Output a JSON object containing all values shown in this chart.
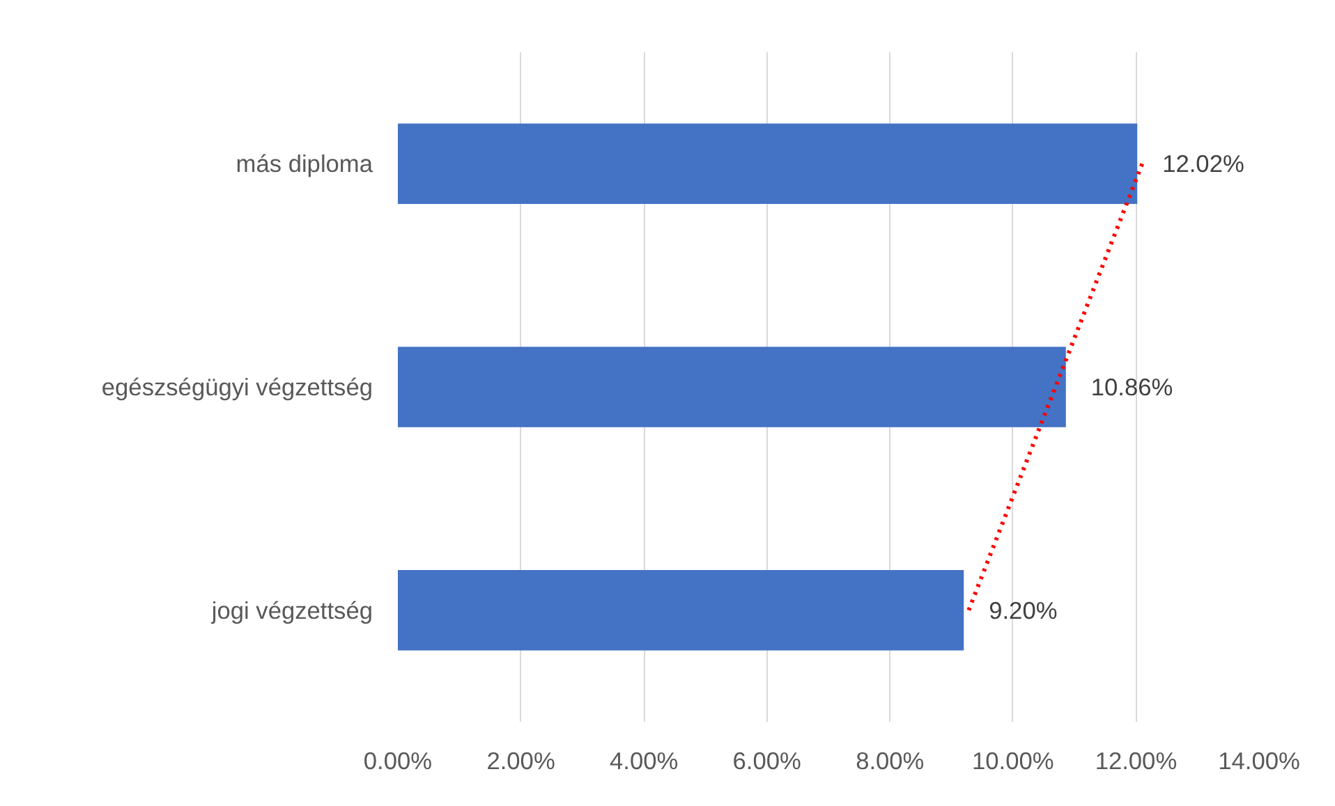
{
  "chart_data": {
    "type": "bar",
    "orientation": "horizontal",
    "categories": [
      "más diploma",
      "egészségügyi végzettség",
      "jogi végzettség"
    ],
    "series": [
      {
        "color": "#4472c4",
        "values": [
          12.02,
          10.86,
          9.2
        ],
        "value_labels": [
          "12.02%",
          "10.86%",
          "9.20%"
        ]
      },
      {
        "type": "line",
        "color": "#ff0000",
        "line_style": "dotted",
        "values": [
          12.1,
          10.69,
          9.28
        ]
      }
    ],
    "xlim": [
      0,
      14
    ],
    "xticks": [
      {
        "value": 0,
        "label": "0.00%"
      },
      {
        "value": 2,
        "label": "2.00%"
      },
      {
        "value": 4,
        "label": "4.00%"
      },
      {
        "value": 6,
        "label": "6.00%"
      },
      {
        "value": 8,
        "label": "8.00%"
      },
      {
        "value": 10,
        "label": "10.00%"
      },
      {
        "value": 12,
        "label": "12.00%"
      },
      {
        "value": 14,
        "label": "14.00%"
      }
    ],
    "grid": "x"
  }
}
